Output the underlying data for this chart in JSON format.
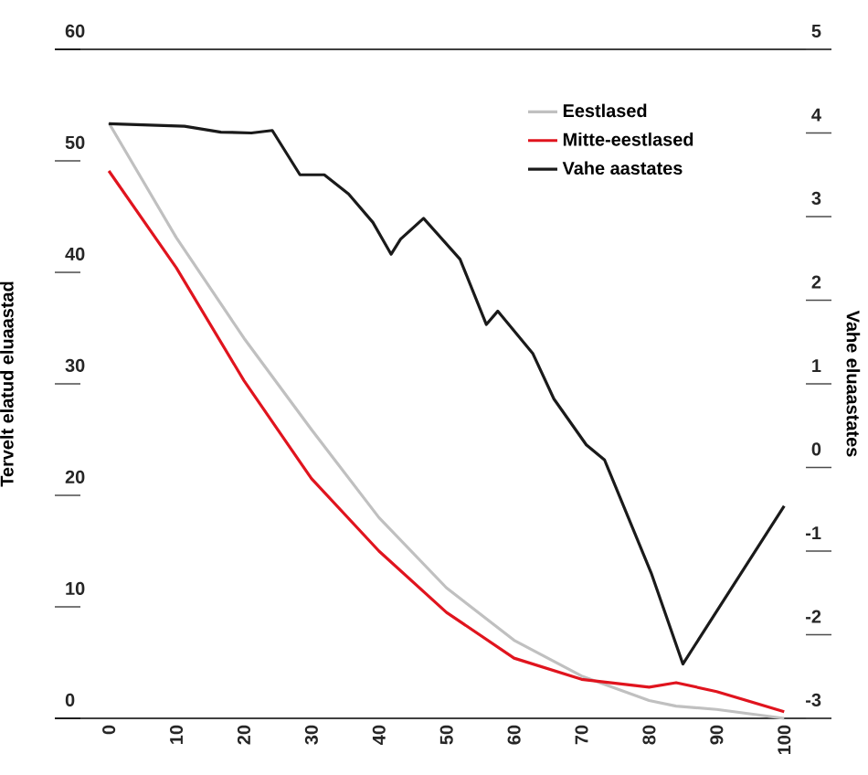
{
  "chart_data": {
    "type": "line",
    "ylabel": "Tervelt elatud eluaastad",
    "y2label": "Vahe eluaastates",
    "xlim": [
      -8,
      107
    ],
    "xticks": [
      0,
      10,
      20,
      30,
      40,
      50,
      60,
      70,
      80,
      90,
      100
    ],
    "ylim": [
      0,
      60
    ],
    "yticks": [
      0,
      10,
      20,
      30,
      40,
      50,
      60
    ],
    "y2lim": [
      -3,
      5
    ],
    "y2ticks": [
      -3,
      -2,
      -1,
      0,
      1,
      2,
      3,
      4,
      5
    ],
    "legend": "top right",
    "marker": "none",
    "line_style": "solid",
    "series": [
      {
        "name": "Eestlased",
        "color": "#c0c0c0",
        "x": [
          0,
          10,
          20,
          30,
          40,
          50,
          60,
          70,
          80,
          84,
          90,
          100
        ],
        "values": [
          53.4,
          43.1,
          34.1,
          25.9,
          18.0,
          11.7,
          7.0,
          3.8,
          1.6,
          1.1,
          0.8,
          0.0
        ]
      },
      {
        "name": "Mitte-eestlased",
        "color": "#e0141e",
        "x": [
          0,
          10,
          20,
          30,
          40,
          50,
          60,
          70,
          80,
          84,
          90,
          100
        ],
        "values": [
          49.1,
          40.4,
          30.3,
          21.5,
          15.0,
          9.5,
          5.4,
          3.5,
          2.8,
          3.2,
          2.4,
          0.6
        ]
      },
      {
        "name": "Vahe aastates",
        "color": "#1a1a1a",
        "axis": "y2",
        "x": [
          0,
          11.2,
          16.6,
          21.1,
          24.2,
          28.3,
          31.9,
          35.5,
          39.1,
          41.8,
          43.2,
          46.6,
          52.0,
          55.9,
          57.6,
          62.8,
          65.9,
          70.7,
          73.4,
          80.3,
          85.0,
          100
        ],
        "values": [
          4.11,
          4.08,
          4.01,
          4.0,
          4.03,
          3.5,
          3.5,
          3.27,
          2.93,
          2.55,
          2.73,
          2.98,
          2.49,
          1.71,
          1.87,
          1.36,
          0.82,
          0.27,
          0.09,
          -1.26,
          -2.35,
          -0.46
        ]
      }
    ]
  }
}
